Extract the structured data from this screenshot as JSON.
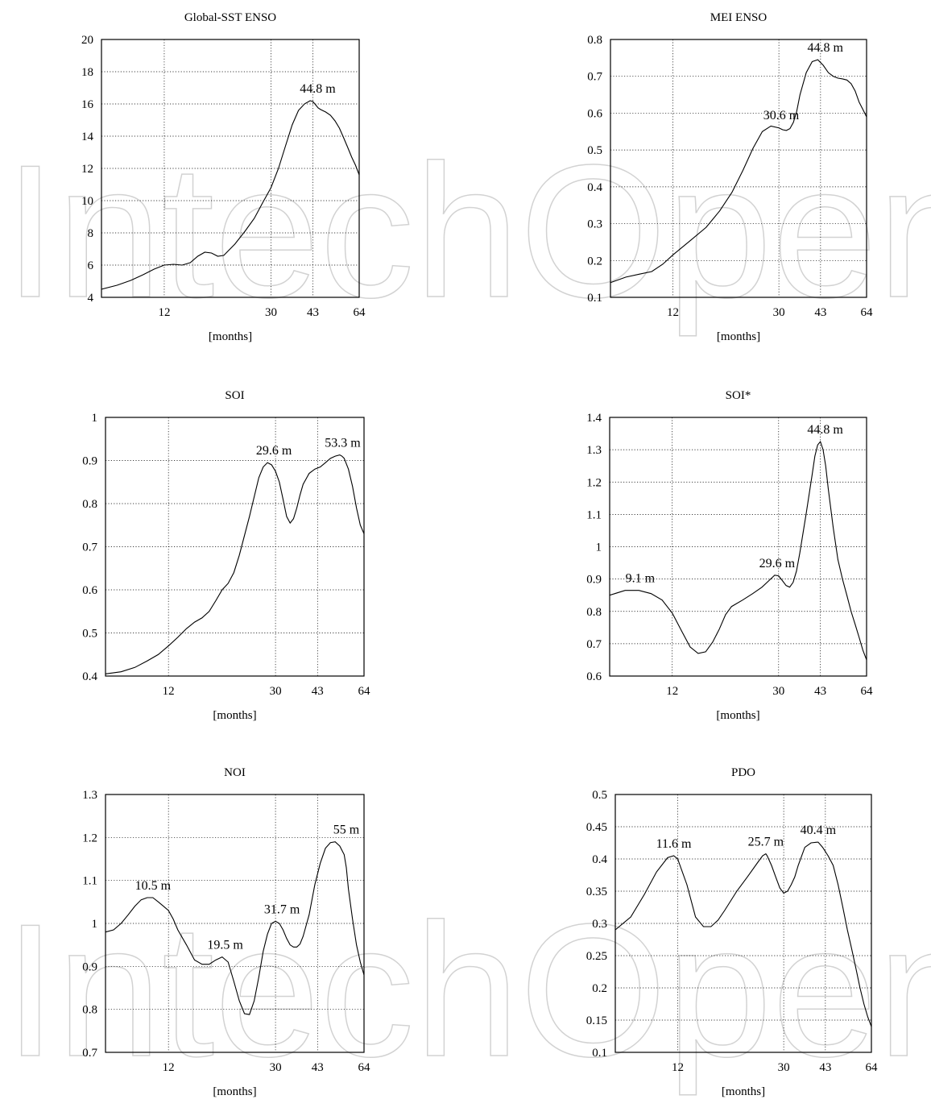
{
  "watermark": {
    "text": "IntechOpen"
  },
  "chart_data": [
    {
      "type": "line",
      "title": "Global-SST ENSO",
      "xlabel": "[months]",
      "x_ticks": [
        12,
        30,
        43,
        64
      ],
      "x_tick_labels": [
        "12",
        "30",
        "43",
        "64"
      ],
      "xlim": [
        7,
        64
      ],
      "ylim": [
        4,
        20
      ],
      "y_ticks": [
        4,
        6,
        8,
        10,
        12,
        14,
        16,
        18,
        20
      ],
      "y_tick_labels": [
        "4",
        "6",
        "8",
        "10",
        "12",
        "14",
        "16",
        "18",
        "20"
      ],
      "grid": true,
      "series": [
        {
          "x": [
            7,
            8,
            9,
            10,
            11,
            12,
            13,
            14,
            15,
            16,
            17,
            18,
            19,
            20,
            22,
            24,
            26,
            28,
            30,
            32,
            34,
            36,
            38,
            40,
            42,
            43,
            44,
            45,
            46,
            48,
            50,
            52,
            54,
            56,
            58,
            60,
            62,
            64
          ],
          "y": [
            4.5,
            4.75,
            5.05,
            5.4,
            5.75,
            6.0,
            6.05,
            6.0,
            6.15,
            6.55,
            6.8,
            6.75,
            6.55,
            6.6,
            7.3,
            8.1,
            8.9,
            9.9,
            10.8,
            12.0,
            13.4,
            14.7,
            15.6,
            16.0,
            16.2,
            16.15,
            15.95,
            15.75,
            15.65,
            15.5,
            15.3,
            14.95,
            14.5,
            13.9,
            13.3,
            12.7,
            12.2,
            11.6
          ]
        }
      ],
      "annotations": [
        {
          "text": "44.8 m",
          "x": 44.8,
          "y": 16.2
        }
      ]
    },
    {
      "type": "line",
      "title": "MEI ENSO",
      "xlabel": "[months]",
      "x_ticks": [
        12,
        30,
        43,
        64
      ],
      "x_tick_labels": [
        "12",
        "30",
        "43",
        "64"
      ],
      "xlim": [
        7,
        64
      ],
      "ylim": [
        0.1,
        0.8
      ],
      "y_ticks": [
        0.1,
        0.2,
        0.3,
        0.4,
        0.5,
        0.6,
        0.7,
        0.8
      ],
      "y_tick_labels": [
        "0.1",
        "0.2",
        "0.3",
        "0.4",
        "0.5",
        "0.6",
        "0.7",
        "0.8"
      ],
      "grid": true,
      "series": [
        {
          "x": [
            7,
            8,
            9,
            10,
            11,
            12,
            14,
            16,
            18,
            20,
            22,
            24,
            26,
            28,
            30,
            31,
            32,
            33,
            34,
            35,
            36,
            38,
            40,
            42,
            44,
            46,
            48,
            50,
            52,
            54,
            56,
            58,
            60,
            62,
            64
          ],
          "y": [
            0.14,
            0.155,
            0.163,
            0.17,
            0.19,
            0.215,
            0.255,
            0.29,
            0.335,
            0.385,
            0.445,
            0.505,
            0.55,
            0.565,
            0.56,
            0.555,
            0.553,
            0.558,
            0.575,
            0.605,
            0.65,
            0.71,
            0.74,
            0.745,
            0.73,
            0.71,
            0.7,
            0.695,
            0.693,
            0.69,
            0.68,
            0.66,
            0.63,
            0.61,
            0.59
          ]
        }
      ],
      "annotations": [
        {
          "text": "30.6 m",
          "x": 30.6,
          "y": 0.562
        },
        {
          "text": "44.8 m",
          "x": 44.8,
          "y": 0.745
        }
      ]
    },
    {
      "type": "line",
      "title": "SOI",
      "xlabel": "[months]",
      "x_ticks": [
        12,
        30,
        43,
        64
      ],
      "x_tick_labels": [
        "12",
        "30",
        "43",
        "64"
      ],
      "xlim": [
        7,
        64
      ],
      "ylim": [
        0.4,
        1
      ],
      "y_ticks": [
        0.4,
        0.5,
        0.6,
        0.7,
        0.8,
        0.9,
        1
      ],
      "y_tick_labels": [
        "0.4",
        "0.5",
        "0.6",
        "0.7",
        "0.8",
        "0.9",
        "1"
      ],
      "grid": true,
      "series": [
        {
          "x": [
            7,
            8,
            9,
            10,
            11,
            12,
            13,
            14,
            15,
            16,
            17,
            18,
            19,
            20,
            21,
            22,
            24,
            26,
            27,
            28,
            29,
            30,
            31,
            32,
            33,
            34,
            35,
            36,
            37,
            38,
            40,
            42,
            44,
            46,
            48,
            50,
            52,
            53,
            54,
            56,
            58,
            60,
            62,
            64
          ],
          "y": [
            0.405,
            0.41,
            0.42,
            0.435,
            0.45,
            0.47,
            0.49,
            0.51,
            0.525,
            0.535,
            0.55,
            0.575,
            0.6,
            0.615,
            0.64,
            0.68,
            0.77,
            0.86,
            0.885,
            0.895,
            0.89,
            0.875,
            0.85,
            0.81,
            0.77,
            0.755,
            0.765,
            0.79,
            0.82,
            0.845,
            0.87,
            0.88,
            0.885,
            0.895,
            0.905,
            0.91,
            0.913,
            0.91,
            0.905,
            0.88,
            0.84,
            0.79,
            0.75,
            0.73
          ]
        }
      ],
      "annotations": [
        {
          "text": "29.6 m",
          "x": 29.6,
          "y": 0.895
        },
        {
          "text": "53.3 m",
          "x": 53.3,
          "y": 0.913
        }
      ]
    },
    {
      "type": "line",
      "title": "SOI*",
      "xlabel": "[months]",
      "x_ticks": [
        12,
        30,
        43,
        64
      ],
      "x_tick_labels": [
        "12",
        "30",
        "43",
        "64"
      ],
      "xlim": [
        7,
        64
      ],
      "ylim": [
        0.6,
        1.4
      ],
      "y_ticks": [
        0.6,
        0.7,
        0.8,
        0.9,
        1,
        1.1,
        1.2,
        1.3,
        1.4
      ],
      "y_tick_labels": [
        "0.6",
        "0.7",
        "0.8",
        "0.9",
        "1",
        "1.1",
        "1.2",
        "1.3",
        "1.4"
      ],
      "grid": true,
      "series": [
        {
          "x": [
            7,
            8,
            9,
            10,
            11,
            12,
            13,
            14,
            15,
            16,
            17,
            18,
            19,
            20,
            22,
            24,
            26,
            28,
            29,
            30,
            31,
            32,
            33,
            34,
            35,
            36,
            38,
            40,
            41,
            42,
            43,
            44,
            45,
            46,
            48,
            50,
            52,
            54,
            56,
            58,
            60,
            62,
            64
          ],
          "y": [
            0.85,
            0.865,
            0.865,
            0.855,
            0.835,
            0.795,
            0.74,
            0.69,
            0.67,
            0.675,
            0.705,
            0.745,
            0.79,
            0.815,
            0.835,
            0.855,
            0.875,
            0.9,
            0.912,
            0.91,
            0.895,
            0.88,
            0.875,
            0.89,
            0.925,
            0.98,
            1.1,
            1.22,
            1.28,
            1.315,
            1.325,
            1.3,
            1.25,
            1.18,
            1.06,
            0.96,
            0.9,
            0.85,
            0.8,
            0.76,
            0.72,
            0.68,
            0.65
          ]
        }
      ],
      "annotations": [
        {
          "text": "9.1 m",
          "x": 9.1,
          "y": 0.865
        },
        {
          "text": "29.6 m",
          "x": 29.6,
          "y": 0.912
        },
        {
          "text": "44.8 m",
          "x": 44.8,
          "y": 1.325
        }
      ]
    },
    {
      "type": "line",
      "title": "NOI",
      "xlabel": "[months]",
      "x_ticks": [
        12,
        30,
        43,
        64
      ],
      "x_tick_labels": [
        "12",
        "30",
        "43",
        "64"
      ],
      "xlim": [
        7,
        64
      ],
      "ylim": [
        0.7,
        1.3
      ],
      "y_ticks": [
        0.7,
        0.8,
        0.9,
        1,
        1.1,
        1.2,
        1.3
      ],
      "y_tick_labels": [
        "0.7",
        "0.8",
        "0.9",
        "1",
        "1.1",
        "1.2",
        "1.3"
      ],
      "grid": true,
      "series": [
        {
          "x": [
            7,
            7.5,
            8,
            8.5,
            9,
            9.5,
            10,
            10.5,
            11,
            11.5,
            12,
            12.5,
            13,
            14,
            15,
            16,
            17,
            18,
            19,
            20,
            21,
            22,
            23,
            24,
            25,
            26,
            27,
            28,
            29,
            30,
            31,
            32,
            33,
            34,
            35,
            36,
            37,
            38,
            40,
            42,
            44,
            46,
            48,
            50,
            52,
            54,
            55,
            56,
            58,
            60,
            62,
            64
          ],
          "y": [
            0.98,
            0.985,
            1.0,
            1.02,
            1.04,
            1.055,
            1.06,
            1.06,
            1.05,
            1.04,
            1.03,
            1.01,
            0.985,
            0.95,
            0.915,
            0.905,
            0.905,
            0.915,
            0.922,
            0.91,
            0.865,
            0.82,
            0.79,
            0.788,
            0.82,
            0.875,
            0.935,
            0.975,
            1.0,
            1.005,
            1.0,
            0.985,
            0.965,
            0.95,
            0.945,
            0.945,
            0.952,
            0.97,
            1.02,
            1.09,
            1.14,
            1.175,
            1.188,
            1.19,
            1.18,
            1.16,
            1.13,
            1.08,
            1.01,
            0.95,
            0.91,
            0.88
          ]
        }
      ],
      "annotations": [
        {
          "text": "10.5 m",
          "x": 10.5,
          "y": 1.06
        },
        {
          "text": "19.5 m",
          "x": 19.5,
          "y": 0.922
        },
        {
          "text": "31.7 m",
          "x": 31.7,
          "y": 1.005
        },
        {
          "text": "55 m",
          "x": 55,
          "y": 1.19
        }
      ]
    },
    {
      "type": "line",
      "title": "PDO",
      "xlabel": "[months]",
      "x_ticks": [
        12,
        30,
        43,
        64
      ],
      "x_tick_labels": [
        "12",
        "30",
        "43",
        "64"
      ],
      "xlim": [
        7,
        64
      ],
      "ylim": [
        0.1,
        0.5
      ],
      "y_ticks": [
        0.1,
        0.15,
        0.2,
        0.25,
        0.3,
        0.35,
        0.4,
        0.45,
        0.5
      ],
      "y_tick_labels": [
        "0.1",
        "0.15",
        "0.2",
        "0.25",
        "0.3",
        "0.35",
        "0.4",
        "0.45",
        "0.5"
      ],
      "grid": true,
      "series": [
        {
          "x": [
            7,
            8,
            9,
            10,
            11,
            11.6,
            12,
            13,
            14,
            15,
            16,
            17,
            18,
            20,
            22,
            24,
            25,
            25.7,
            26,
            27,
            28,
            29,
            30,
            31,
            32,
            33,
            34,
            36,
            38,
            40,
            40.4,
            42,
            44,
            46,
            48,
            50,
            52,
            54,
            56,
            58,
            60,
            62,
            64
          ],
          "y": [
            0.29,
            0.31,
            0.345,
            0.38,
            0.402,
            0.405,
            0.4,
            0.36,
            0.31,
            0.295,
            0.295,
            0.305,
            0.32,
            0.35,
            0.373,
            0.395,
            0.405,
            0.408,
            0.405,
            0.39,
            0.372,
            0.355,
            0.347,
            0.35,
            0.36,
            0.372,
            0.39,
            0.418,
            0.425,
            0.426,
            0.426,
            0.418,
            0.405,
            0.39,
            0.36,
            0.325,
            0.29,
            0.26,
            0.23,
            0.2,
            0.175,
            0.155,
            0.14
          ]
        }
      ],
      "annotations": [
        {
          "text": "11.6 m",
          "x": 11.6,
          "y": 0.405
        },
        {
          "text": "25.7 m",
          "x": 25.7,
          "y": 0.408
        },
        {
          "text": "40.4 m",
          "x": 40.4,
          "y": 0.426
        }
      ]
    }
  ]
}
